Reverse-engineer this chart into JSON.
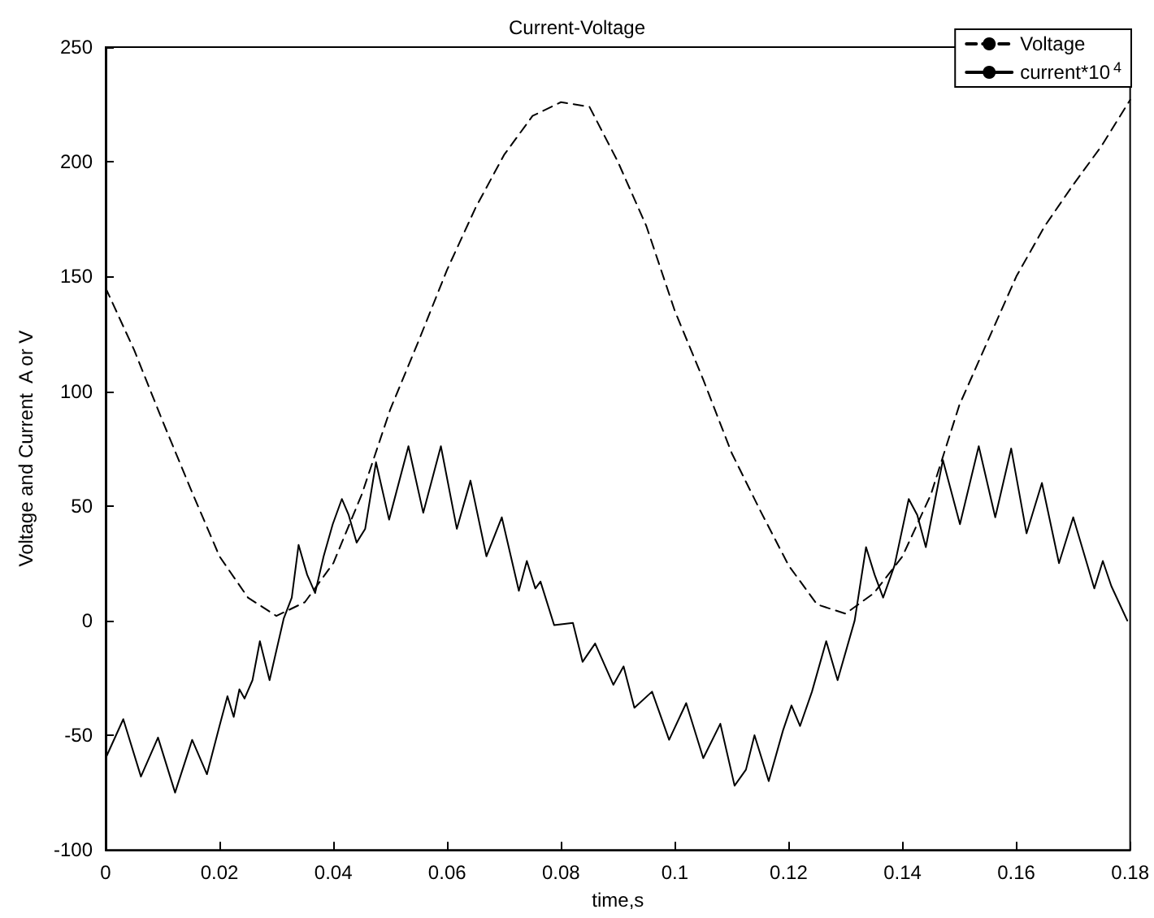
{
  "chart_data": {
    "type": "line",
    "title": "Current-Voltage",
    "xlabel": "time,s",
    "ylabel": "Voltage and Current  A or V",
    "xlim": [
      0,
      0.18
    ],
    "xticks": [
      0,
      0.02,
      0.04,
      0.06,
      0.08,
      0.1,
      0.12,
      0.14,
      0.16,
      0.18
    ],
    "ylim": [
      -100,
      250
    ],
    "yticks": [
      -100,
      -50,
      0,
      50,
      100,
      150,
      200,
      250
    ],
    "grid": false,
    "legend": "top right",
    "marker": "none",
    "series": [
      {
        "name": "Voltage",
        "color": "#000000",
        "line_style": "dashed",
        "x": [
          0,
          0.005,
          0.01,
          0.015,
          0.02,
          0.025,
          0.03,
          0.035,
          0.04,
          0.045,
          0.05,
          0.055,
          0.06,
          0.065,
          0.07,
          0.075,
          0.08,
          0.085,
          0.09,
          0.095,
          0.1,
          0.105,
          0.11,
          0.115,
          0.12,
          0.125,
          0.13,
          0.135,
          0.14,
          0.145,
          0.15,
          0.155,
          0.16,
          0.165,
          0.17,
          0.175,
          0.18
        ],
        "values": [
          145,
          118,
          87,
          57,
          28,
          10,
          2,
          8,
          25,
          55,
          92,
          122,
          153,
          180,
          203,
          220,
          226,
          224,
          200,
          172,
          135,
          105,
          73,
          48,
          24,
          7,
          3,
          12,
          28,
          55,
          94,
          122,
          150,
          172,
          190,
          207,
          227
        ]
      },
      {
        "name": "current*10$^{4}$",
        "color": "#000000",
        "line_style": "solid",
        "x": [
          0,
          0.0031,
          0.0062,
          0.0092,
          0.0122,
          0.0152,
          0.0178,
          0.02,
          0.0214,
          0.0225,
          0.0235,
          0.0244,
          0.0258,
          0.0271,
          0.0288,
          0.0313,
          0.0327,
          0.0339,
          0.0354,
          0.0368,
          0.0383,
          0.0399,
          0.0415,
          0.0427,
          0.0441,
          0.0456,
          0.0475,
          0.0498,
          0.0532,
          0.0558,
          0.0589,
          0.0617,
          0.0641,
          0.0669,
          0.0696,
          0.0726,
          0.074,
          0.0755,
          0.0764,
          0.0788,
          0.0821,
          0.0838,
          0.086,
          0.0892,
          0.091,
          0.0929,
          0.096,
          0.099,
          0.102,
          0.105,
          0.108,
          0.1105,
          0.1125,
          0.114,
          0.1165,
          0.119,
          0.1205,
          0.122,
          0.1241,
          0.1266,
          0.1286,
          0.1316,
          0.1336,
          0.1351,
          0.1366,
          0.1386,
          0.1411,
          0.1426,
          0.1441,
          0.1471,
          0.1501,
          0.1534,
          0.1563,
          0.1591,
          0.1618,
          0.1645,
          0.1675,
          0.17,
          0.1737,
          0.1752,
          0.1767,
          0.1795
        ],
        "values": [
          -60,
          -43,
          -68,
          -51,
          -75,
          -52,
          -67,
          -46,
          -33,
          -42,
          -30,
          -34,
          -26,
          -9,
          -26,
          1,
          10,
          33,
          20,
          12,
          28,
          42,
          53,
          46,
          34,
          40,
          69,
          44,
          76,
          47,
          76,
          40,
          61,
          28,
          45,
          13,
          26,
          14,
          17,
          -2,
          -1,
          -18,
          -10,
          -28,
          -20,
          -38,
          -31,
          -52,
          -36,
          -60,
          -45,
          -72,
          -65,
          -50,
          -70,
          -48,
          -37,
          -46,
          -31,
          -9,
          -26,
          0,
          32,
          20,
          10,
          24,
          53,
          46,
          32,
          70,
          42,
          76,
          45,
          75,
          38,
          60,
          25,
          45,
          14,
          26,
          15,
          0
        ]
      }
    ]
  }
}
